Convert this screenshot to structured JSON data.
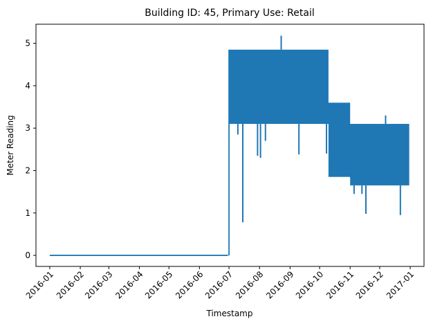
{
  "chart_data": {
    "type": "line",
    "title": "Building ID: 45, Primary Use: Retail",
    "xlabel": "Timestamp",
    "ylabel": "Meter Reading",
    "xlim": [
      "2015-12-18",
      "2017-01-15"
    ],
    "ylim": [
      -0.26,
      5.45
    ],
    "x_ticks": [
      "2016-01",
      "2016-02",
      "2016-03",
      "2016-04",
      "2016-05",
      "2016-06",
      "2016-07",
      "2016-08",
      "2016-09",
      "2016-10",
      "2016-11",
      "2016-12",
      "2017-01"
    ],
    "y_ticks": [
      "0",
      "1",
      "2",
      "3",
      "4",
      "5"
    ],
    "grid": false,
    "legend": "none",
    "series": [
      {
        "color": "#1f77b4",
        "segments": [
          {
            "type": "flat",
            "x": [
              "2016-01-01",
              "2016-06-30"
            ],
            "value": 0
          },
          {
            "type": "band",
            "x": [
              "2016-07-01",
              "2016-10-10"
            ],
            "low": 3.1,
            "high": 4.85
          },
          {
            "type": "band",
            "x": [
              "2016-10-10",
              "2016-11-01"
            ],
            "low": 1.85,
            "high": 3.6
          },
          {
            "type": "band",
            "x": [
              "2016-11-01",
              "2016-12-31"
            ],
            "low": 1.65,
            "high": 3.1
          }
        ],
        "spikes": [
          {
            "x": "2016-07-10",
            "value": 2.85
          },
          {
            "x": "2016-07-15",
            "value": 0.78
          },
          {
            "x": "2016-07-30",
            "value": 2.35
          },
          {
            "x": "2016-08-02",
            "value": 2.3
          },
          {
            "x": "2016-08-07",
            "value": 2.7
          },
          {
            "x": "2016-08-23",
            "value": 5.18
          },
          {
            "x": "2016-09-10",
            "value": 2.38
          },
          {
            "x": "2016-10-08",
            "value": 2.4
          },
          {
            "x": "2016-11-05",
            "value": 1.45
          },
          {
            "x": "2016-11-13",
            "value": 1.45
          },
          {
            "x": "2016-11-17",
            "value": 0.98
          },
          {
            "x": "2016-12-07",
            "value": 3.3
          },
          {
            "x": "2016-12-22",
            "value": 0.95
          }
        ]
      }
    ]
  }
}
